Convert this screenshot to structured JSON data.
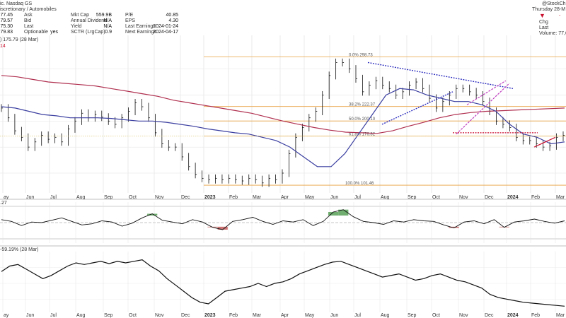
{
  "header": {
    "line1": "ic. Nasdaq GS",
    "line2": "iscretionary / Automobiles",
    "left_values": [
      "77.45",
      "79.57",
      "75.30",
      "79.83"
    ],
    "left_labels": [
      "Ask",
      "Bid",
      "Last",
      "Optionable"
    ],
    "optionable_value": "yes",
    "mid_labels": [
      "Mkt Cap",
      "Annual Dividend",
      "Yield",
      "SCTR (LrgCap)"
    ],
    "mid_values": [
      "559.9B",
      "N/A",
      "N/A",
      "0.9"
    ],
    "right_labels": [
      "P/E",
      "EPS",
      "Last Earnings",
      "Next Earnings"
    ],
    "right_values": [
      "40.85",
      "4.30",
      "2024-01-24",
      "2024-04-17"
    ],
    "brand": "@StockCh",
    "date": "Thursday 28-M",
    "chg_label": "Chg",
    "last_label": "Last",
    "volume": "Volume: 77,6",
    "chg_value": "-",
    "legend_price": ") 175.79 (28 Mar)",
    "legend_14": "14",
    "legend_ind": ".27",
    "legend_rel": "-59.19% (28 Mar)",
    "colors": {
      "ma50": "#3b3fa0",
      "ma200": "#b03050",
      "fib": "#e8a040",
      "trend": "#3030c0",
      "wedge": "#c040c0",
      "support": "#cc1030",
      "pos": "#4c9a4c",
      "neg": "#c05050"
    }
  },
  "chart_data": {
    "type": "line",
    "x_ticks": [
      "ay",
      "Jun",
      "Jul",
      "Aug",
      "Sep",
      "Oct",
      "Nov",
      "Dec",
      "2023",
      "Feb",
      "Mar",
      "Apr",
      "May",
      "Jun",
      "Jul",
      "Aug",
      "Sep",
      "Oct",
      "Nov",
      "Dec",
      "2024",
      "Feb",
      "Mar"
    ],
    "fib_levels": [
      {
        "label": "0.0% 298.73",
        "value": 298.73
      },
      {
        "label": "38.2% 222.37",
        "value": 222.37
      },
      {
        "label": "50.0% 200.10",
        "value": 200.1
      },
      {
        "label": "61.8% 176.82",
        "value": 176.82
      },
      {
        "label": "100.0% 101.46",
        "value": 101.46
      }
    ],
    "price_closes": [
      220,
      205,
      185,
      175,
      160,
      168,
      178,
      172,
      175,
      168,
      188,
      200,
      212,
      205,
      210,
      206,
      200,
      195,
      205,
      215,
      228,
      222,
      205,
      182,
      165,
      160,
      160,
      145,
      130,
      118,
      112,
      110,
      112,
      110,
      112,
      110,
      108,
      112,
      110,
      105,
      112,
      110,
      120,
      150,
      175,
      190,
      205,
      215,
      240,
      270,
      290,
      290,
      280,
      265,
      245,
      255,
      262,
      255,
      250,
      240,
      245,
      255,
      260,
      250,
      235,
      220,
      230,
      240,
      250,
      250,
      245,
      240,
      230,
      215,
      200,
      195,
      190,
      175,
      170,
      170,
      165,
      160,
      162,
      175,
      178
    ],
    "ma50": [
      222,
      220,
      215,
      210,
      208,
      205,
      205,
      205,
      204,
      202,
      200,
      200,
      198,
      195,
      192,
      188,
      185,
      182,
      180,
      175,
      170,
      160,
      145,
      130,
      130,
      150,
      180,
      210,
      240,
      250,
      248,
      240,
      235,
      230,
      230,
      225,
      215,
      195,
      180,
      175,
      165,
      168
    ],
    "ma200": [
      270,
      268,
      264,
      260,
      258,
      256,
      254,
      250,
      246,
      242,
      238,
      232,
      228,
      224,
      220,
      216,
      212,
      206,
      200,
      195,
      190,
      186,
      183,
      182,
      181,
      185,
      192,
      198,
      205,
      210,
      213,
      215,
      216,
      217,
      218,
      219,
      220
    ],
    "ind_values": [
      5,
      2,
      -5,
      1,
      0,
      4,
      8,
      2,
      -4,
      -2,
      3,
      1,
      -6,
      -1,
      8,
      15,
      4,
      1,
      -2,
      5,
      1,
      -8,
      -12,
      2,
      5,
      9,
      2,
      -3,
      3,
      1,
      5,
      -5,
      2,
      18,
      22,
      10,
      2,
      0,
      -3,
      3,
      1,
      5,
      3,
      2,
      -4,
      -9,
      1,
      3,
      -2,
      5,
      -8,
      1,
      3,
      6,
      2,
      -1,
      3
    ],
    "ind_ylim": [
      -30,
      30
    ],
    "rel_values": [
      -15,
      -8,
      -6,
      -12,
      -18,
      -24,
      -20,
      -14,
      -8,
      -4,
      -6,
      -4,
      -2,
      -5,
      -2,
      -4,
      -2,
      0,
      -8,
      -14,
      -24,
      -32,
      -40,
      -48,
      -54,
      -56,
      -48,
      -40,
      -38,
      -36,
      -34,
      -30,
      -34,
      -30,
      -28,
      -24,
      -18,
      -14,
      -10,
      -6,
      -3,
      -2,
      -6,
      -10,
      -14,
      -18,
      -22,
      -20,
      -18,
      -22,
      -26,
      -24,
      -20,
      -18,
      -22,
      -26,
      -28,
      -32,
      -36,
      -44,
      -48,
      -50,
      -52,
      -54,
      -55,
      -56,
      -57,
      -58,
      -59
    ],
    "rel_ylim": [
      -65,
      5
    ]
  }
}
